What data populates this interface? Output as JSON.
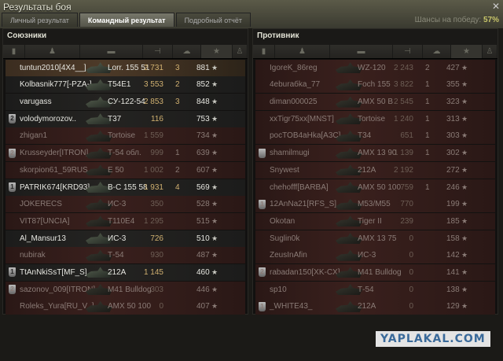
{
  "window": {
    "title": "Результаты боя",
    "close_icon": "close-icon"
  },
  "tabs": [
    {
      "label": "Личный результат"
    },
    {
      "label": "Командный результат",
      "active": true
    },
    {
      "label": "Подробный отчёт"
    }
  ],
  "win_chance": {
    "label": "Шансы на победу:",
    "value": "57%"
  },
  "columns": [
    "squad-icon",
    "player-icon",
    "tank-icon",
    "damage-icon",
    "kills-icon",
    "xp-star-icon",
    "medal-icon"
  ],
  "sort_column": "xp",
  "allies": {
    "title": "Союзники",
    "rows": [
      {
        "name": "tuntun2010[4X4__]",
        "tank": "Lorr. 155 51",
        "damage": "2 731",
        "kills": "3",
        "xp": "881",
        "state": "me"
      },
      {
        "name": "Kolbasnik777[-PZA-]",
        "tank": "T54E1",
        "damage": "3 553",
        "kills": "2",
        "xp": "852",
        "state": "alive"
      },
      {
        "name": "varugass",
        "tank": "СУ-122-54",
        "damage": "2 853",
        "kills": "3",
        "xp": "848",
        "state": "alive"
      },
      {
        "squad": "2",
        "name": "volodymorozov..",
        "tank": "T37",
        "damage": "116",
        "kills": "",
        "xp": "753",
        "state": "alive"
      },
      {
        "name": "zhigan1",
        "tank": "Tortoise",
        "damage": "1 559",
        "kills": "",
        "xp": "734",
        "state": "dead"
      },
      {
        "squad": "2",
        "name": "Krusseyder[ITRON]",
        "tank": "Т-54 обл.",
        "damage": "999",
        "kills": "1",
        "xp": "639",
        "state": "dead"
      },
      {
        "name": "skorpion61_59RUS",
        "tank": "E 50",
        "damage": "1 002",
        "kills": "2",
        "xp": "607",
        "state": "dead"
      },
      {
        "squad": "1",
        "name": "PATRIK674[KRD93]",
        "tank": "B-C 155 58",
        "damage": "1 931",
        "kills": "4",
        "xp": "569",
        "state": "alive"
      },
      {
        "name": "JOKERECS",
        "tank": "ИС-3",
        "damage": "350",
        "kills": "",
        "xp": "528",
        "state": "dead"
      },
      {
        "name": "VIT87[UNCIA]",
        "tank": "T110E4",
        "damage": "1 295",
        "kills": "",
        "xp": "515",
        "state": "dead"
      },
      {
        "name": "Al_Mansur13",
        "tank": "ИС-3",
        "damage": "726",
        "kills": "",
        "xp": "510",
        "state": "alive"
      },
      {
        "name": "nubirak",
        "tank": "Т-54",
        "damage": "930",
        "kills": "",
        "xp": "487",
        "state": "dead"
      },
      {
        "squad": "1",
        "name": "TtAnNkiSsT[MF_S]",
        "tank": "212A",
        "damage": "1 145",
        "kills": "",
        "xp": "460",
        "state": "alive"
      },
      {
        "squad": "2",
        "name": "sazonov_009[ITRON]",
        "tank": "M41 Bulldog",
        "damage": "303",
        "kills": "",
        "xp": "446",
        "state": "dead"
      },
      {
        "name": "Roleks_Yura[RU_V_]",
        "tank": "AMX 50 100",
        "damage": "0",
        "kills": "",
        "xp": "407",
        "state": "dead"
      }
    ]
  },
  "enemies": {
    "title": "Противник",
    "rows": [
      {
        "name": "IgoreK_86reg",
        "tank": "WZ-120",
        "damage": "2 243",
        "kills": "2",
        "xp": "427",
        "state": "dead"
      },
      {
        "name": "4eburaбka_77",
        "tank": "Foch 155",
        "damage": "3 822",
        "kills": "1",
        "xp": "355",
        "state": "dead"
      },
      {
        "name": "diman000025",
        "tank": "AMX 50 B",
        "damage": "2 545",
        "kills": "1",
        "xp": "323",
        "state": "dead"
      },
      {
        "name": "xxTigr75xx[MNST]",
        "tank": "Tortoise",
        "damage": "1 240",
        "kills": "1",
        "xp": "313",
        "state": "dead"
      },
      {
        "name": "pocTOB4aHka[A3C]",
        "tank": "T34",
        "damage": "651",
        "kills": "1",
        "xp": "303",
        "state": "dead"
      },
      {
        "squad": " ",
        "name": "shamilmugi",
        "tank": "AMX 13 90",
        "damage": "1 139",
        "kills": "1",
        "xp": "302",
        "state": "dead"
      },
      {
        "name": "Snywest",
        "tank": "212A",
        "damage": "2 192",
        "kills": "",
        "xp": "272",
        "state": "dead"
      },
      {
        "name": "chehofff[BARBA]",
        "tank": "AMX 50 100",
        "damage": "759",
        "kills": "1",
        "xp": "246",
        "state": "dead"
      },
      {
        "squad": "1",
        "name": "12AnNa21[RFS_S]",
        "tank": "M53/M55",
        "damage": "770",
        "kills": "",
        "xp": "199",
        "state": "dead"
      },
      {
        "name": "Okotan",
        "tank": "Tiger II",
        "damage": "239",
        "kills": "",
        "xp": "185",
        "state": "dead"
      },
      {
        "name": "Suglin0k",
        "tank": "AMX 13 75",
        "damage": "0",
        "kills": "",
        "xp": "158",
        "state": "dead"
      },
      {
        "name": "ZeusInAfin",
        "tank": "ИС-3",
        "damage": "0",
        "kills": "",
        "xp": "142",
        "state": "dead"
      },
      {
        "squad": "2",
        "name": "rabadan150[XK-CX]",
        "tank": "M41 Bulldog",
        "damage": "0",
        "kills": "",
        "xp": "141",
        "state": "dead"
      },
      {
        "name": "sp10",
        "tank": "Т-54",
        "damage": "0",
        "kills": "",
        "xp": "138",
        "state": "dead"
      },
      {
        "squad": "1",
        "name": "_WHITE43_",
        "tank": "212A",
        "damage": "0",
        "kills": "",
        "xp": "129",
        "state": "dead"
      }
    ]
  },
  "watermark": "YAPLAKAL.COM"
}
